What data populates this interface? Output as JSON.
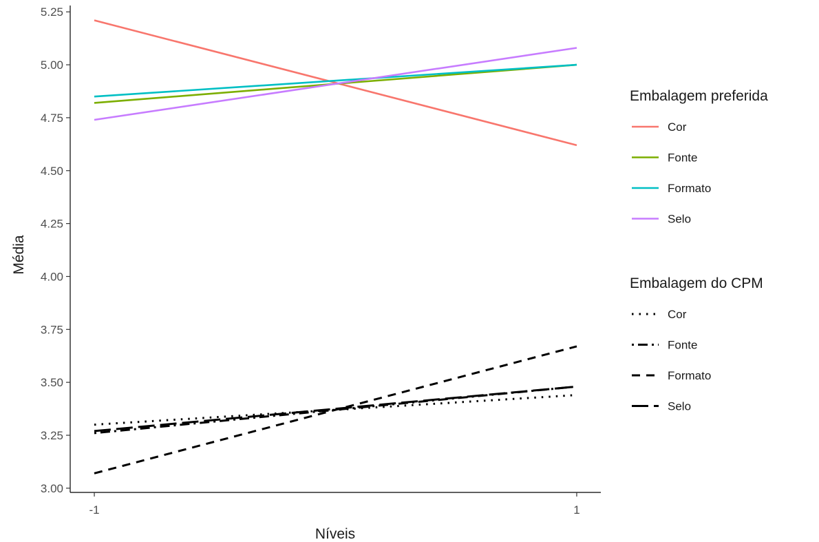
{
  "chart_data": {
    "type": "line",
    "xlabel": "Níveis",
    "ylabel": "Média",
    "x": [
      -1,
      1
    ],
    "x_tick_labels": [
      "-1",
      "1"
    ],
    "xlim": [
      -1.1,
      1.1
    ],
    "ylim": [
      2.98,
      5.28
    ],
    "y_ticks": [
      3.0,
      3.25,
      3.5,
      3.75,
      4.0,
      4.25,
      4.5,
      4.75,
      5.0,
      5.25
    ],
    "y_tick_labels": [
      "3.00",
      "3.25",
      "3.50",
      "3.75",
      "4.00",
      "4.25",
      "4.50",
      "4.75",
      "5.00",
      "5.25"
    ],
    "grid": false,
    "legend_placement": "right",
    "legends": [
      {
        "title": "Embalagem preferida",
        "series": [
          {
            "name": "Cor",
            "color": "#F8766D",
            "values": [
              5.21,
              4.62
            ]
          },
          {
            "name": "Fonte",
            "color": "#7CAE00",
            "values": [
              4.82,
              5.0
            ]
          },
          {
            "name": "Formato",
            "color": "#00BFC4",
            "values": [
              4.85,
              5.0
            ]
          },
          {
            "name": "Selo",
            "color": "#C77CFF",
            "values": [
              4.74,
              5.08
            ]
          }
        ]
      },
      {
        "title": "Embalagem do CPM",
        "series": [
          {
            "name": "Cor",
            "color": "#000000",
            "linetype": "dotted",
            "values": [
              3.3,
              3.44
            ]
          },
          {
            "name": "Fonte",
            "color": "#000000",
            "linetype": "dotdash",
            "values": [
              3.26,
              3.48
            ]
          },
          {
            "name": "Formato",
            "color": "#000000",
            "linetype": "dashed",
            "values": [
              3.07,
              3.67
            ]
          },
          {
            "name": "Selo",
            "color": "#000000",
            "linetype": "longdash",
            "values": [
              3.27,
              3.48
            ]
          }
        ]
      }
    ]
  }
}
